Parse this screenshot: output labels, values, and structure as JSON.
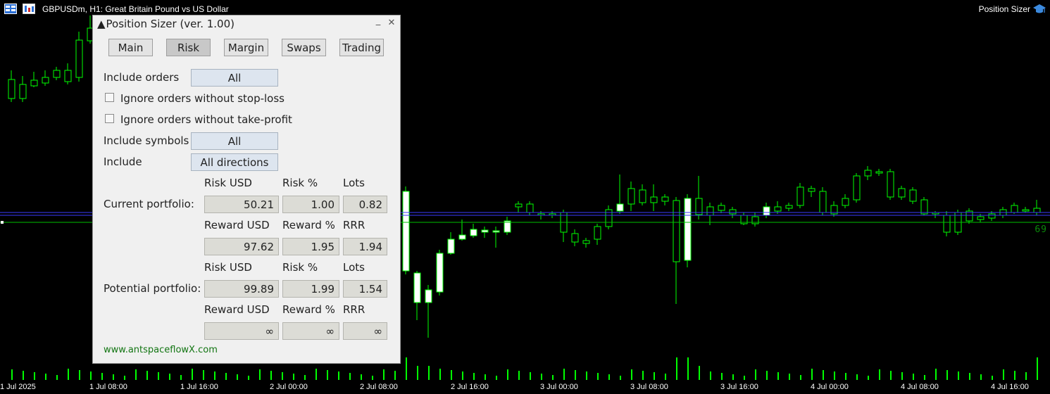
{
  "chart": {
    "title": "GBPUSDm, H1:  Great Britain Pound vs US Dollar",
    "ea_name": "Position Sizer",
    "price_tag": "69",
    "time_labels": [
      "1 Jul 2025",
      "1 Jul 08:00",
      "1 Jul 16:00",
      "2 Jul 00:00",
      "2 Jul 08:00",
      "2 Jul 16:00",
      "3 Jul 00:00",
      "3 Jul 08:00",
      "3 Jul 16:00",
      "4 Jul 00:00",
      "4 Jul 08:00",
      "4 Jul 16:00"
    ],
    "colors": {
      "background": "#000000",
      "bull_candle": "#ffffff",
      "wick": "#00ff00",
      "volume": "#00ff00",
      "line_blue": "#3a3aff",
      "line_green": "#00c000"
    }
  },
  "panel": {
    "title": "Position Sizer (ver. 1.00)",
    "title_arrow": "▲",
    "minimize": "_",
    "close": "✕",
    "tabs": [
      "Main",
      "Risk",
      "Margin",
      "Swaps",
      "Trading"
    ],
    "active_tab": "Risk",
    "include_orders_label": "Include orders",
    "include_orders_value": "All",
    "ignore_no_sl_label": "Ignore orders without stop-loss",
    "ignore_no_tp_label": "Ignore orders without take-profit",
    "include_symbols_label": "Include symbols",
    "include_symbols_value": "All",
    "include_label": "Include",
    "include_value": "All directions",
    "current": {
      "label": "Current portfolio:",
      "h_risk_usd": "Risk USD",
      "h_risk_pct": "Risk %",
      "h_lots": "Lots",
      "risk_usd": "50.21",
      "risk_pct": "1.00",
      "lots": "0.82",
      "h_reward_usd": "Reward USD",
      "h_reward_pct": "Reward %",
      "h_rrr": "RRR",
      "reward_usd": "97.62",
      "reward_pct": "1.95",
      "rrr": "1.94"
    },
    "potential": {
      "label": "Potential portfolio:",
      "h_risk_usd": "Risk USD",
      "h_risk_pct": "Risk %",
      "h_lots": "Lots",
      "risk_usd": "99.89",
      "risk_pct": "1.99",
      "lots": "1.54",
      "h_reward_usd": "Reward USD",
      "h_reward_pct": "Reward %",
      "h_rrr": "RRR",
      "reward_usd": "∞",
      "reward_pct": "∞",
      "rrr": "∞"
    },
    "website": "www.antspaceflowX.com"
  }
}
